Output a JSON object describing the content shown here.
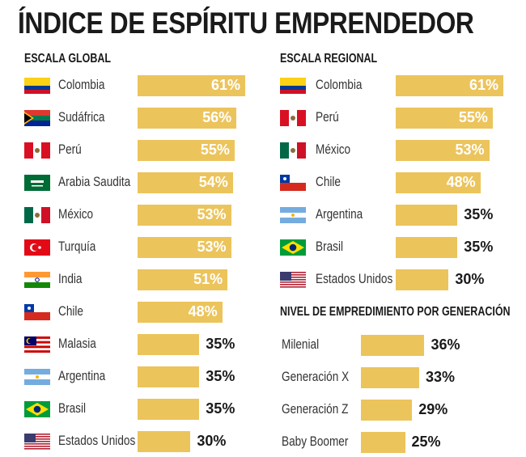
{
  "title": "ÍNDICE DE ESPÍRITU EMPRENDEDOR",
  "chart_data": [
    {
      "type": "bar",
      "orientation": "horizontal",
      "title": "ESCALA GLOBAL",
      "unit": "%",
      "categories": [
        "Colombia",
        "Sudáfrica",
        "Perú",
        "Arabia Saudita",
        "México",
        "Turquía",
        "India",
        "Chile",
        "Malasia",
        "Argentina",
        "Brasil",
        "Estados Unidos"
      ],
      "flags": [
        "co",
        "za",
        "pe",
        "sa",
        "mx",
        "tr",
        "in",
        "cl",
        "my",
        "ar",
        "br",
        "us"
      ],
      "values": [
        61,
        56,
        55,
        54,
        53,
        53,
        51,
        48,
        35,
        35,
        35,
        30
      ],
      "labels": [
        "61%",
        "56%",
        "55%",
        "54%",
        "53%",
        "53%",
        "51%",
        "48%",
        "35%",
        "35%",
        "35%",
        "30%"
      ]
    },
    {
      "type": "bar",
      "orientation": "horizontal",
      "title": "ESCALA REGIONAL",
      "unit": "%",
      "categories": [
        "Colombia",
        "Perú",
        "México",
        "Chile",
        "Argentina",
        "Brasil",
        "Estados Unidos"
      ],
      "flags": [
        "co",
        "pe",
        "mx",
        "cl",
        "ar",
        "br",
        "us"
      ],
      "values": [
        61,
        55,
        53,
        48,
        35,
        35,
        30
      ],
      "labels": [
        "61%",
        "55%",
        "53%",
        "48%",
        "35%",
        "35%",
        "30%"
      ]
    },
    {
      "type": "bar",
      "orientation": "horizontal",
      "title": "NIVEL DE EMPREDIMIENTO POR GENERACIÓN",
      "unit": "%",
      "categories": [
        "Milenial",
        "Generación  X",
        "Generación  Z",
        "Baby Boomer"
      ],
      "values": [
        36,
        33,
        29,
        25
      ],
      "labels": [
        "36%",
        "33%",
        "29%",
        "25%"
      ]
    }
  ],
  "colors": {
    "bar": "#ecc45c",
    "label_inside": "#ffffff",
    "label_outside": "#1a1a1a"
  }
}
